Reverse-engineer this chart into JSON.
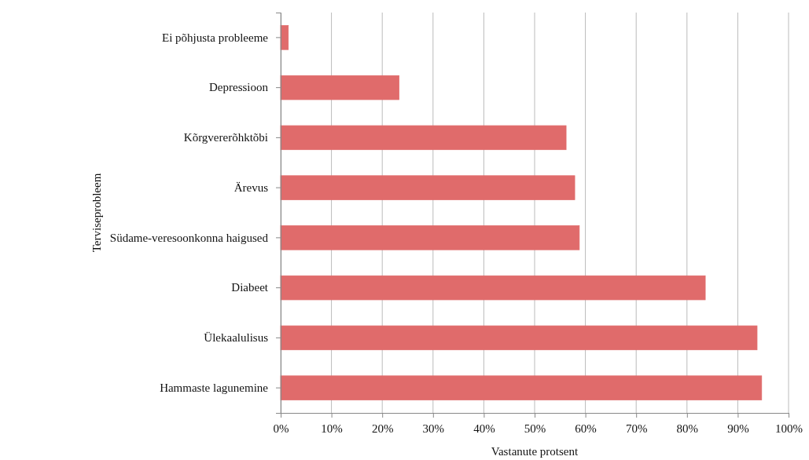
{
  "chart_data": {
    "type": "bar",
    "orientation": "horizontal",
    "xlabel": "Vastanute protsent",
    "ylabel": "Terviseprobleem",
    "categories": [
      "Ei põhjusta probleeme",
      "Depressioon",
      "Kõrgvererõhktõbi",
      "Ärevus",
      "Südame-veresoonkonna haigused",
      "Diabeet",
      "Ülekaalulisus",
      "Hammaste lagunemine"
    ],
    "values": [
      1.5,
      23.3,
      56.2,
      57.9,
      58.8,
      83.6,
      93.8,
      94.7
    ],
    "color": "#e06b6b",
    "xlim": [
      0,
      100
    ],
    "xticks": [
      {
        "value": 0,
        "label": "0%"
      },
      {
        "value": 10,
        "label": "10%"
      },
      {
        "value": 20,
        "label": "20%"
      },
      {
        "value": 30,
        "label": "30%"
      },
      {
        "value": 40,
        "label": "40%"
      },
      {
        "value": 50,
        "label": "50%"
      },
      {
        "value": 60,
        "label": "60%"
      },
      {
        "value": 70,
        "label": "70%"
      },
      {
        "value": 80,
        "label": "80%"
      },
      {
        "value": 90,
        "label": "90%"
      },
      {
        "value": 100,
        "label": "100%"
      }
    ],
    "grid": "x"
  }
}
